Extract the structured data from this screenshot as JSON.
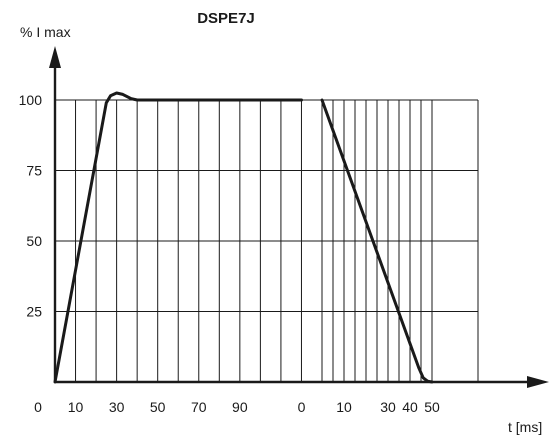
{
  "chart_data": {
    "type": "line",
    "title": "DSPE7J",
    "ylabel": "% I max",
    "xlabel": "t [ms]",
    "grid": true,
    "ylim": [
      0,
      100
    ],
    "y_ticks": [
      "25",
      "50",
      "75",
      "100"
    ],
    "y_tick_values": [
      25,
      50,
      75,
      100
    ],
    "x_tick_labels": [
      "0",
      "10",
      "30",
      "50",
      "70",
      "90",
      "0",
      "10",
      "30",
      "40",
      "50"
    ],
    "segments": [
      {
        "name": "",
        "x_range": [
          0,
          130
        ],
        "x_ticks": [
          0,
          10,
          20,
          30,
          40,
          50,
          60,
          70,
          80,
          90,
          100,
          110,
          120,
          130
        ],
        "x_labels": {
          "0": "0",
          "10": "10",
          "30": "30",
          "50": "50",
          "70": "70",
          "90": "90",
          "120": "0"
        },
        "x": [
          0,
          25,
          27,
          30,
          33,
          37,
          40,
          120
        ],
        "y": [
          0,
          99,
          101.5,
          102.5,
          102,
          100.5,
          100,
          100
        ]
      },
      {
        "name": "",
        "x_range": [
          0,
          50
        ],
        "x_ticks": [
          0,
          5,
          10,
          15,
          20,
          25,
          30,
          35,
          40,
          45,
          50
        ],
        "x_labels": {
          "10": "10",
          "30": "30",
          "40": "40",
          "50": "50"
        },
        "x": [
          0,
          44,
          46,
          48,
          50
        ],
        "y": [
          100,
          5,
          1.5,
          0.3,
          0
        ]
      }
    ],
    "line_color": "#1a1a1a",
    "grid_color": "#1a1a1a"
  }
}
